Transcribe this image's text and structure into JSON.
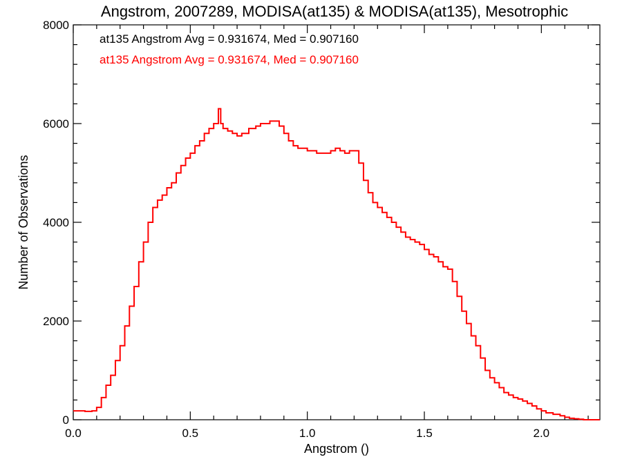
{
  "chart_data": {
    "type": "line",
    "title": "Angstrom, 2007289, MODISA(at135) & MODISA(at135), Mesotrophic",
    "xlabel": "Angstrom ()",
    "ylabel": "Number of Observations",
    "xlim": [
      0.0,
      2.25
    ],
    "ylim": [
      0,
      8000
    ],
    "x_ticks": [
      0.0,
      0.5,
      1.0,
      1.5,
      2.0
    ],
    "x_tick_labels": [
      "0.0",
      "0.5",
      "1.0",
      "1.5",
      "2.0"
    ],
    "y_ticks": [
      0,
      2000,
      4000,
      6000,
      8000
    ],
    "y_tick_labels": [
      "0",
      "2000",
      "4000",
      "6000",
      "8000"
    ],
    "annotations": [
      {
        "text": "at135 Angstrom Avg = 0.931674, Med = 0.907160",
        "color": "#000000"
      },
      {
        "text": "at135 Angstrom Avg = 0.931674, Med = 0.907160",
        "color": "#ff0000"
      }
    ],
    "series": [
      {
        "color": "#ff0000",
        "style": "step",
        "x": [
          0.0,
          0.05,
          0.08,
          0.1,
          0.12,
          0.14,
          0.16,
          0.18,
          0.2,
          0.22,
          0.24,
          0.26,
          0.28,
          0.3,
          0.32,
          0.34,
          0.36,
          0.38,
          0.4,
          0.42,
          0.44,
          0.46,
          0.48,
          0.5,
          0.52,
          0.54,
          0.56,
          0.58,
          0.6,
          0.62,
          0.63,
          0.64,
          0.66,
          0.68,
          0.7,
          0.72,
          0.75,
          0.78,
          0.8,
          0.82,
          0.84,
          0.86,
          0.88,
          0.9,
          0.92,
          0.94,
          0.96,
          1.0,
          1.04,
          1.08,
          1.1,
          1.12,
          1.14,
          1.16,
          1.18,
          1.2,
          1.22,
          1.24,
          1.26,
          1.28,
          1.3,
          1.32,
          1.34,
          1.36,
          1.38,
          1.4,
          1.42,
          1.44,
          1.46,
          1.48,
          1.5,
          1.52,
          1.54,
          1.56,
          1.58,
          1.6,
          1.62,
          1.64,
          1.66,
          1.68,
          1.7,
          1.72,
          1.74,
          1.76,
          1.78,
          1.8,
          1.82,
          1.84,
          1.86,
          1.88,
          1.9,
          1.92,
          1.94,
          1.96,
          1.98,
          2.0,
          2.02,
          2.05,
          2.08,
          2.1,
          2.12,
          2.14,
          2.16,
          2.18,
          2.2,
          2.25
        ],
        "y": [
          180,
          170,
          180,
          250,
          450,
          700,
          900,
          1200,
          1500,
          1900,
          2300,
          2700,
          3200,
          3600,
          4000,
          4300,
          4450,
          4550,
          4700,
          4800,
          5000,
          5150,
          5300,
          5400,
          5550,
          5650,
          5800,
          5900,
          6000,
          6300,
          6000,
          5900,
          5850,
          5800,
          5750,
          5800,
          5900,
          5950,
          6000,
          6000,
          6050,
          6050,
          5950,
          5800,
          5650,
          5550,
          5500,
          5450,
          5400,
          5400,
          5450,
          5500,
          5450,
          5400,
          5450,
          5450,
          5200,
          4850,
          4600,
          4400,
          4300,
          4200,
          4100,
          4000,
          3900,
          3800,
          3700,
          3650,
          3600,
          3550,
          3450,
          3350,
          3300,
          3200,
          3100,
          3050,
          2800,
          2500,
          2200,
          1950,
          1700,
          1500,
          1250,
          1000,
          850,
          750,
          650,
          550,
          500,
          450,
          420,
          380,
          330,
          280,
          220,
          180,
          140,
          110,
          80,
          50,
          30,
          20,
          10,
          0,
          0,
          0
        ]
      }
    ]
  }
}
